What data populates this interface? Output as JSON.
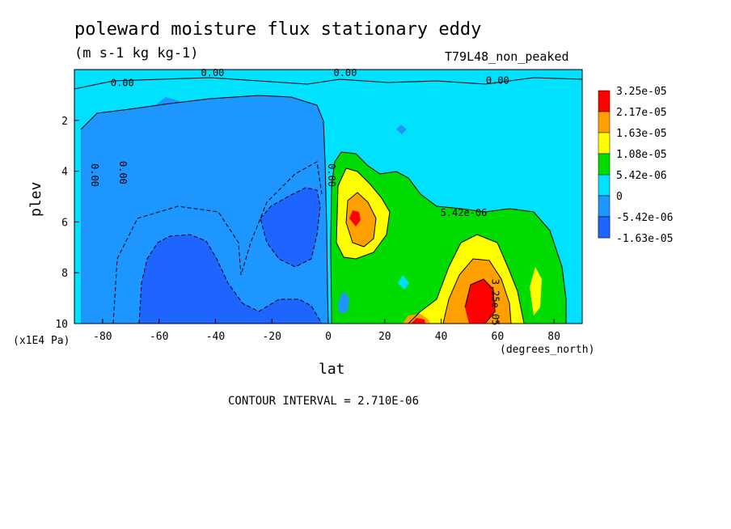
{
  "header": {
    "title": "poleward moisture flux stationary eddy",
    "units": "(m s-1 kg kg-1)",
    "run": "T79L48_non_peaked"
  },
  "footer": {
    "contour_interval": "CONTOUR INTERVAL = 2.710E-06"
  },
  "colors": {
    "c1": "#1e64ff",
    "c2": "#1e96ff",
    "c3": "#00e1ff",
    "c4": "#00dc00",
    "c5": "#ffff00",
    "c6": "#ffa000",
    "c7": "#ff0000"
  },
  "chart_data": {
    "type": "heatmap",
    "title": "poleward moisture flux stationary eddy",
    "subtitle": "(m s-1 kg kg-1)",
    "xlabel": "lat",
    "x_unit_label": "(degrees_north)",
    "ylabel": "plev",
    "y_unit_label": "(x1E4 Pa)",
    "xlim": [
      -90,
      90
    ],
    "ylim": [
      0,
      10
    ],
    "y_inverted": true,
    "x_ticks": [
      -80,
      -60,
      -40,
      -20,
      0,
      20,
      40,
      60,
      80
    ],
    "y_ticks": [
      2,
      4,
      6,
      8,
      10
    ],
    "legend": {
      "placement": "right",
      "entries": [
        {
          "label": "3.25e-05",
          "color": "#ff0000"
        },
        {
          "label": "2.17e-05",
          "color": "#ffa000"
        },
        {
          "label": "1.63e-05",
          "color": "#ffff00"
        },
        {
          "label": "1.08e-05",
          "color": "#00dc00"
        },
        {
          "label": "5.42e-06",
          "color": "#00e1ff"
        },
        {
          "label": "0",
          "color": "#1e96ff"
        },
        {
          "label": "-5.42e-06",
          "color": "#1e64ff"
        },
        {
          "label": "-1.63e-05",
          "color": ""
        }
      ]
    },
    "contour_labels": [
      {
        "text": "0.00",
        "lat": -73,
        "plev": 0.5
      },
      {
        "text": "0.00",
        "lat": -41,
        "plev": 0.1
      },
      {
        "text": "0.00",
        "lat": 6,
        "plev": 0.1
      },
      {
        "text": "0.00",
        "lat": 60,
        "plev": 0.4
      },
      {
        "text": "0.00",
        "lat": -84,
        "plev": 4.0
      },
      {
        "text": "0.00",
        "lat": -74,
        "plev": 3.9
      },
      {
        "text": "0.00",
        "lat": 0,
        "plev": 4.0
      },
      {
        "text": "5.42e-06",
        "lat": 48,
        "plev": 5.6
      },
      {
        "text": "3.25e-05",
        "lat": 58,
        "plev": 9.0
      }
    ],
    "regions": [
      {
        "level": 4,
        "color": "#00dc00",
        "desc": "positive flux NH lower troposphere"
      },
      {
        "level": 6,
        "color": "#ffa000",
        "desc": "maximum near 10N 6e4 Pa"
      },
      {
        "level": 7,
        "color": "#ff0000",
        "desc": "maximum near 52N 9e4 Pa"
      },
      {
        "level": 1,
        "color": "#1e64ff",
        "desc": "negative flux SH lower troposphere"
      }
    ]
  }
}
